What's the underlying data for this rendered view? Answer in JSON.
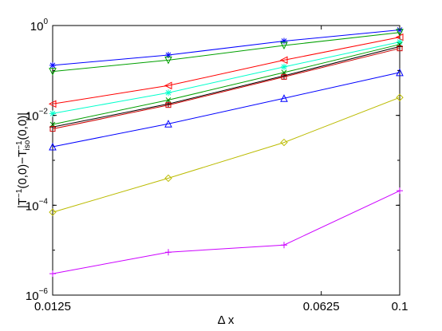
{
  "chart_data": {
    "type": "line",
    "title": "",
    "xlabel": "Δ x",
    "ylabel": "|T⁻¹(0,0)−T⁻¹iso(0,0)|",
    "ylabel_parts": {
      "pre": "|T",
      "sup1": "−1",
      "mid": "(0,0)−T",
      "sup2": "−1",
      "sub": "iso",
      "post": "(0,0)|"
    },
    "x_scale": "log",
    "y_scale": "log",
    "xlim": [
      0.0125,
      0.1
    ],
    "ylim": [
      1e-06,
      1
    ],
    "x_ticks": [
      {
        "value": 0.0125,
        "label": "0.0125"
      },
      {
        "value": 0.0625,
        "label": "0.0625"
      },
      {
        "value": 0.1,
        "label": "0.1"
      }
    ],
    "y_ticks": [
      {
        "value": 1e-06,
        "base": "10",
        "exp": "−6"
      },
      {
        "value": 0.0001,
        "base": "10",
        "exp": "−4"
      },
      {
        "value": 0.01,
        "base": "10",
        "exp": "−2"
      },
      {
        "value": 1,
        "base": "10",
        "exp": "0"
      }
    ],
    "grid": false,
    "legend": "none",
    "x": [
      0.0125,
      0.025,
      0.05,
      0.1
    ],
    "series": [
      {
        "color": "#0000ff",
        "marker": "star",
        "values": [
          0.13,
          0.22,
          0.45,
          0.8
        ]
      },
      {
        "color": "#00a000",
        "marker": "triangle-down",
        "values": [
          0.095,
          0.17,
          0.36,
          0.7
        ]
      },
      {
        "color": "#ff0000",
        "marker": "triangle-left",
        "values": [
          0.018,
          0.046,
          0.17,
          0.55
        ]
      },
      {
        "color": "#00ffcc",
        "marker": "star",
        "values": [
          0.011,
          0.032,
          0.12,
          0.43
        ]
      },
      {
        "color": "#00a000",
        "marker": "x",
        "values": [
          0.0063,
          0.022,
          0.09,
          0.38
        ]
      },
      {
        "color": "#000000",
        "marker": "plus",
        "values": [
          0.0055,
          0.018,
          0.076,
          0.34
        ]
      },
      {
        "color": "#cc0000",
        "marker": "square",
        "values": [
          0.005,
          0.017,
          0.072,
          0.31
        ]
      },
      {
        "color": "#0000ff",
        "marker": "triangle-up",
        "values": [
          0.002,
          0.0065,
          0.024,
          0.09
        ]
      },
      {
        "color": "#bbbb00",
        "marker": "diamond",
        "values": [
          7e-05,
          0.0004,
          0.0025,
          0.025
        ]
      },
      {
        "color": "#cc00ff",
        "marker": "plus",
        "values": [
          3e-06,
          9e-06,
          1.3e-05,
          0.00021
        ]
      }
    ]
  }
}
